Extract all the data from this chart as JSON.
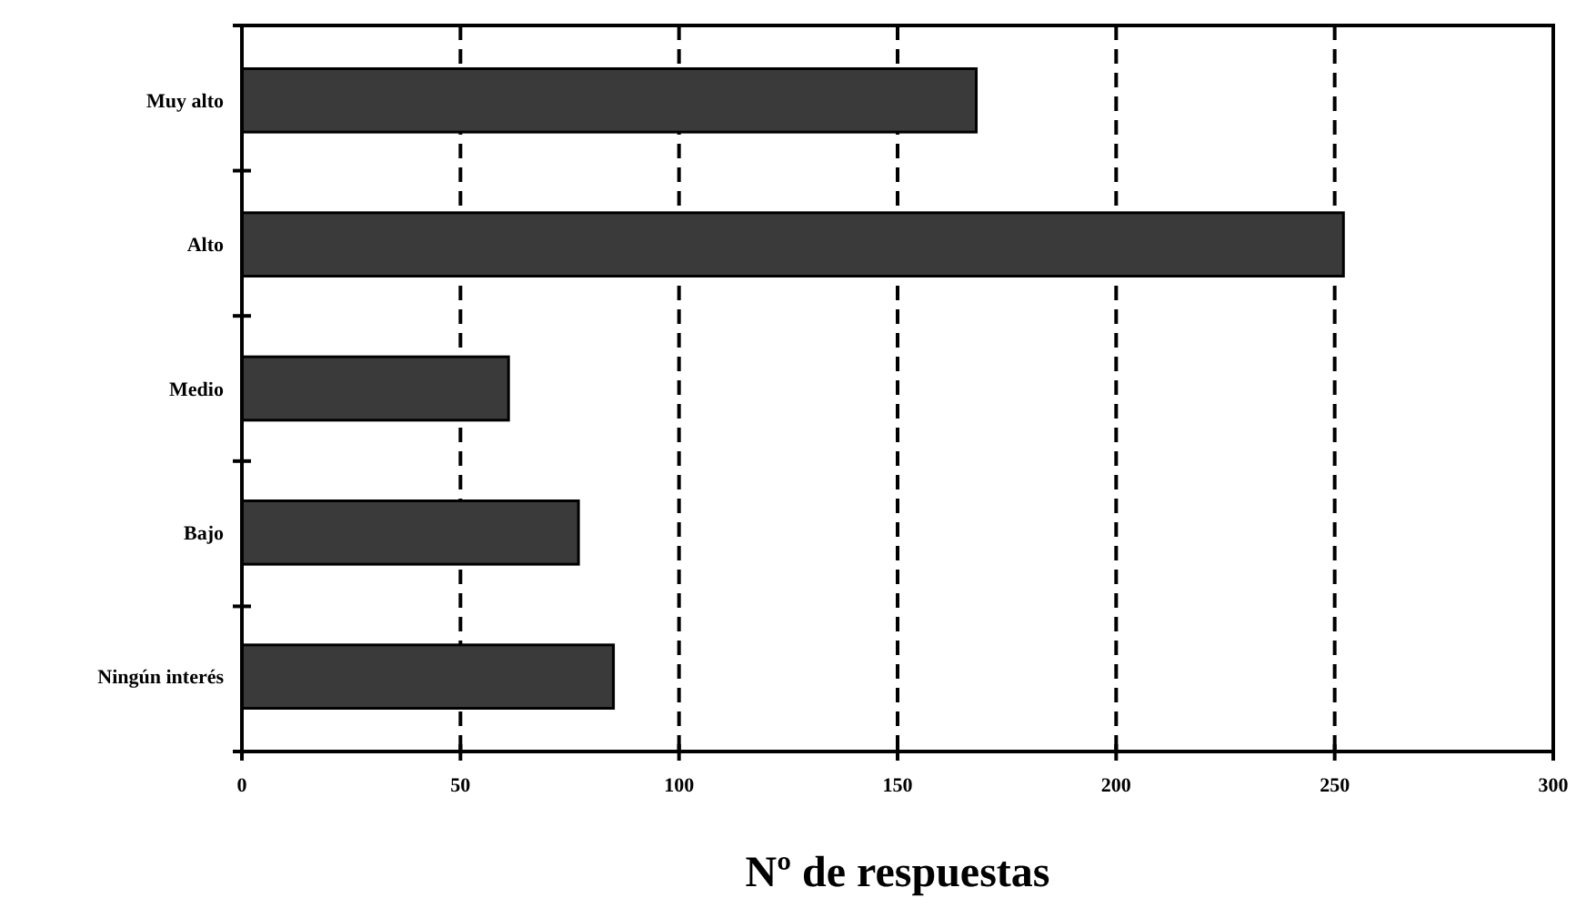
{
  "chart_data": {
    "type": "bar",
    "orientation": "horizontal",
    "xlabel": "Nº de respuestas",
    "categories": [
      "Muy alto",
      "Alto",
      "Medio",
      "Bajo",
      "Ningún interés"
    ],
    "values": [
      168,
      252,
      61,
      77,
      85
    ],
    "color": "#3a3a3a",
    "xlim": [
      0,
      300
    ],
    "xticks": [
      0,
      50,
      100,
      150,
      200,
      250,
      300
    ],
    "grid": "x",
    "line_style": "dashed"
  }
}
